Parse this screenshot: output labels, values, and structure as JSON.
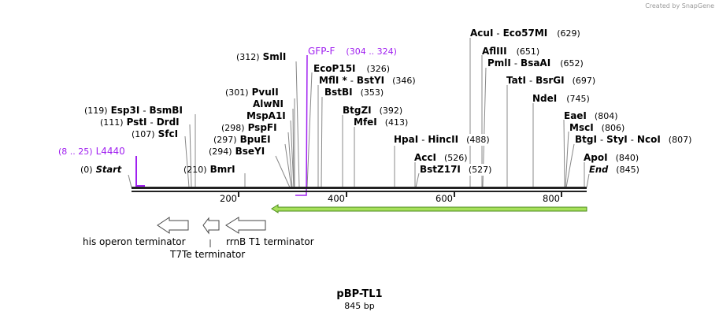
{
  "watermark": "Created by SnapGene",
  "title": "pBP-TL1",
  "length": "845 bp",
  "ticks": [
    "200",
    "400",
    "600",
    "800"
  ],
  "start": {
    "name": "Start",
    "pos": "(0)"
  },
  "end": {
    "name": "End",
    "pos": "(845)"
  },
  "primers": [
    {
      "name": "L4440",
      "range": "(8 .. 25)"
    },
    {
      "name": "GFP-F",
      "range": "(304 .. 324)"
    }
  ],
  "enzymes": {
    "esp3i": {
      "name": "Esp3I",
      "alt": "BsmBI",
      "pos": "(119)"
    },
    "psti": {
      "name": "PstI",
      "alt": "DrdI",
      "pos": "(111)"
    },
    "sfci": {
      "name": "SfcI",
      "pos": "(107)"
    },
    "bmri": {
      "name": "BmrI",
      "pos": "(210)"
    },
    "smli": {
      "name": "SmlI",
      "pos": "(312)"
    },
    "pvuii": {
      "name": "PvuII",
      "pos": "(301)"
    },
    "alwni": {
      "name": "AlwNI"
    },
    "mspa1i": {
      "name": "MspA1I"
    },
    "pspfi": {
      "name": "PspFI",
      "pos": "(298)"
    },
    "bpuei": {
      "name": "BpuEI",
      "pos": "(297)"
    },
    "bseyi": {
      "name": "BseYI",
      "pos": "(294)"
    },
    "ecop15i": {
      "name": "EcoP15I",
      "pos": "(326)"
    },
    "mfli": {
      "name": "MflI *",
      "alt": "BstYI",
      "pos": "(346)"
    },
    "bstbi": {
      "name": "BstBI",
      "pos": "(353)"
    },
    "btgzi": {
      "name": "BtgZI",
      "pos": "(392)"
    },
    "mfei": {
      "name": "MfeI",
      "pos": "(413)"
    },
    "hpai": {
      "name": "HpaI",
      "alt": "HincII",
      "pos": "(488)"
    },
    "acci": {
      "name": "AccI",
      "pos": "(526)"
    },
    "bstz17i": {
      "name": "BstZ17I",
      "pos": "(527)"
    },
    "acui": {
      "name": "AcuI",
      "alt": "Eco57MI",
      "pos": "(629)"
    },
    "afliii": {
      "name": "AflIII",
      "pos": "(651)"
    },
    "pmli": {
      "name": "PmlI",
      "alt": "BsaAI",
      "pos": "(652)"
    },
    "tati": {
      "name": "TatI",
      "alt": "BsrGI",
      "pos": "(697)"
    },
    "ndei": {
      "name": "NdeI",
      "pos": "(745)"
    },
    "eaei": {
      "name": "EaeI",
      "pos": "(804)"
    },
    "msci": {
      "name": "MscI",
      "pos": "(806)"
    },
    "btgi": {
      "name": "BtgI",
      "alt": "StyI",
      "alt2": "NcoI",
      "pos": "(807)"
    },
    "apoi": {
      "name": "ApoI",
      "pos": "(840)"
    }
  },
  "features": {
    "his": "his operon terminator",
    "t7te": "T7Te terminator",
    "rrnb": "rrnB T1 terminator"
  },
  "colors": {
    "primer": "#a020f0",
    "orf": "#a6e05a"
  }
}
